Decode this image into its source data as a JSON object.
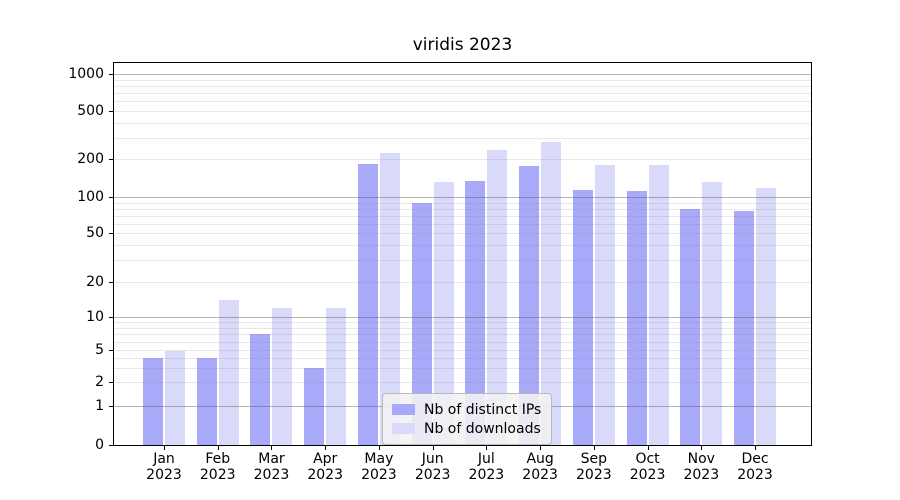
{
  "title": "viridis 2023",
  "chart_data": {
    "type": "bar",
    "categories": [
      "Jan 2023",
      "Feb 2023",
      "Mar 2023",
      "Apr 2023",
      "May 2023",
      "Jun 2023",
      "Jul 2023",
      "Aug 2023",
      "Sep 2023",
      "Oct 2023",
      "Nov 2023",
      "Dec 2023"
    ],
    "series": [
      {
        "name": "Nb of distinct IPs",
        "color": "#a9a9f9",
        "values": [
          4,
          4,
          7,
          3,
          185,
          90,
          135,
          177,
          115,
          112,
          80,
          76
        ]
      },
      {
        "name": "Nb of downloads",
        "color": "#d9d9f9",
        "values": [
          5,
          14,
          12,
          12,
          225,
          132,
          240,
          280,
          180,
          180,
          132,
          118
        ]
      }
    ],
    "title": "viridis 2023",
    "xlabel": "",
    "ylabel": "",
    "yscale": "symlog",
    "yticks": [
      0,
      1,
      2,
      5,
      10,
      20,
      50,
      100,
      200,
      500,
      1000
    ],
    "ylim": [
      0,
      1230
    ],
    "grid": "horizontal major and minor gridlines",
    "legend_position": "lower center inside plot"
  },
  "colors": {
    "series_dark": "#a9a9f9",
    "series_light": "#d9d9f9",
    "major_grid": "#b4b4b4",
    "minor_grid": "#e8e8e8",
    "axis": "#000000",
    "background": "#ffffff"
  }
}
